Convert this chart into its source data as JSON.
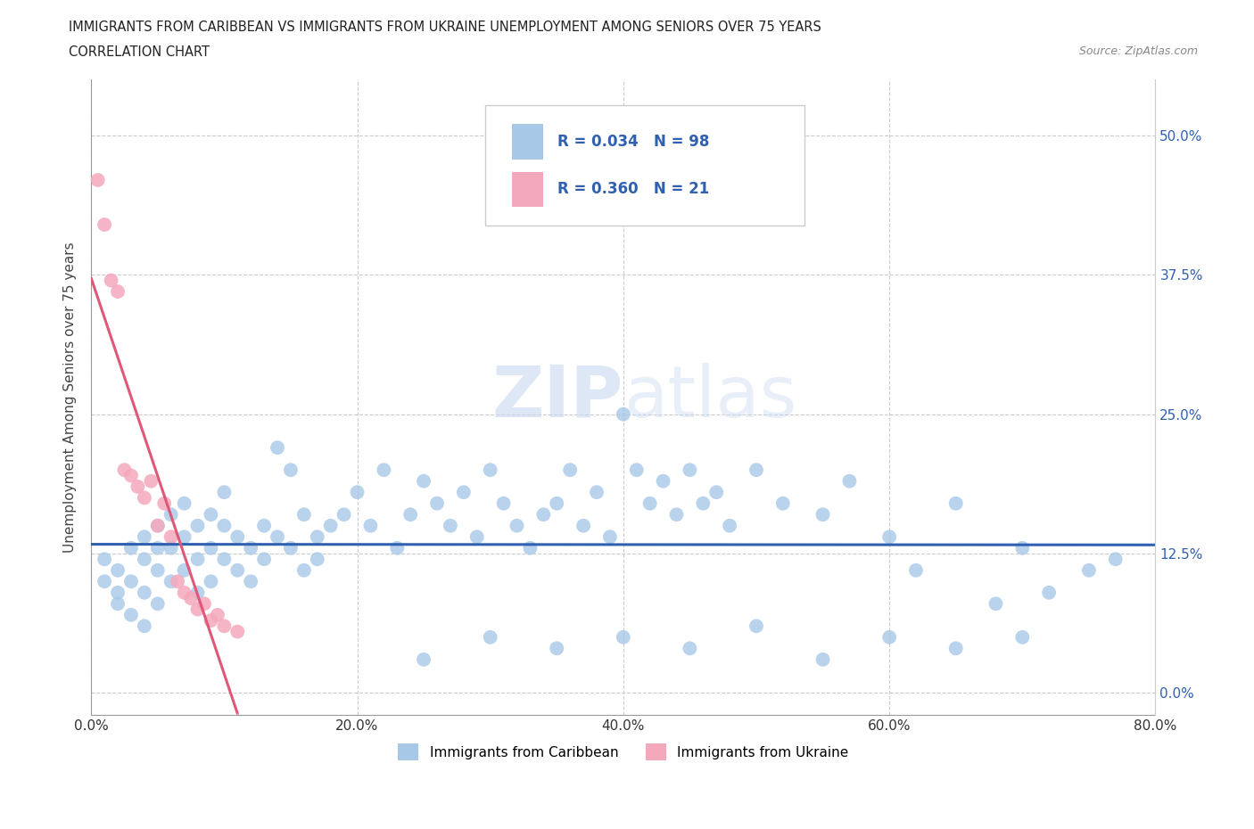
{
  "title_line1": "IMMIGRANTS FROM CARIBBEAN VS IMMIGRANTS FROM UKRAINE UNEMPLOYMENT AMONG SENIORS OVER 75 YEARS",
  "title_line2": "CORRELATION CHART",
  "source_text": "Source: ZipAtlas.com",
  "ylabel": "Unemployment Among Seniors over 75 years",
  "xlim": [
    0.0,
    0.8
  ],
  "ylim": [
    -0.02,
    0.55
  ],
  "xticks": [
    0.0,
    0.2,
    0.4,
    0.6,
    0.8
  ],
  "xticklabels": [
    "0.0%",
    "20.0%",
    "40.0%",
    "60.0%",
    "80.0%"
  ],
  "yticks": [
    0.0,
    0.125,
    0.25,
    0.375,
    0.5
  ],
  "yticklabels_right": [
    "0.0%",
    "12.5%",
    "25.0%",
    "37.5%",
    "50.0%"
  ],
  "grid_color": "#cccccc",
  "background_color": "#ffffff",
  "caribbean_color": "#a8c8e8",
  "ukraine_color": "#f4a8bc",
  "caribbean_line_color": "#3060b0",
  "ukraine_line_color": "#e05878",
  "ukraine_line_dotted_color": "#e8a0b0",
  "R_caribbean": 0.034,
  "N_caribbean": 98,
  "R_ukraine": 0.36,
  "N_ukraine": 21,
  "watermark_zip": "ZIP",
  "watermark_atlas": "atlas",
  "legend_label_caribbean": "Immigrants from Caribbean",
  "legend_label_ukraine": "Immigrants from Ukraine",
  "caribbean_x": [
    0.01,
    0.01,
    0.02,
    0.02,
    0.02,
    0.03,
    0.03,
    0.03,
    0.04,
    0.04,
    0.04,
    0.04,
    0.05,
    0.05,
    0.05,
    0.05,
    0.06,
    0.06,
    0.06,
    0.07,
    0.07,
    0.07,
    0.08,
    0.08,
    0.08,
    0.09,
    0.09,
    0.09,
    0.1,
    0.1,
    0.1,
    0.11,
    0.11,
    0.12,
    0.12,
    0.13,
    0.13,
    0.14,
    0.14,
    0.15,
    0.15,
    0.16,
    0.16,
    0.17,
    0.17,
    0.18,
    0.19,
    0.2,
    0.21,
    0.22,
    0.23,
    0.24,
    0.25,
    0.26,
    0.27,
    0.28,
    0.29,
    0.3,
    0.31,
    0.32,
    0.33,
    0.34,
    0.35,
    0.36,
    0.37,
    0.38,
    0.39,
    0.4,
    0.41,
    0.42,
    0.43,
    0.44,
    0.45,
    0.46,
    0.47,
    0.48,
    0.5,
    0.52,
    0.55,
    0.57,
    0.6,
    0.62,
    0.65,
    0.68,
    0.7,
    0.72,
    0.75,
    0.77,
    0.4,
    0.35,
    0.25,
    0.3,
    0.45,
    0.5,
    0.55,
    0.6,
    0.65,
    0.7
  ],
  "caribbean_y": [
    0.12,
    0.1,
    0.11,
    0.09,
    0.08,
    0.13,
    0.1,
    0.07,
    0.14,
    0.12,
    0.09,
    0.06,
    0.15,
    0.13,
    0.11,
    0.08,
    0.16,
    0.13,
    0.1,
    0.17,
    0.14,
    0.11,
    0.15,
    0.12,
    0.09,
    0.16,
    0.13,
    0.1,
    0.18,
    0.15,
    0.12,
    0.14,
    0.11,
    0.13,
    0.1,
    0.15,
    0.12,
    0.22,
    0.14,
    0.2,
    0.13,
    0.16,
    0.11,
    0.14,
    0.12,
    0.15,
    0.16,
    0.18,
    0.15,
    0.2,
    0.13,
    0.16,
    0.19,
    0.17,
    0.15,
    0.18,
    0.14,
    0.2,
    0.17,
    0.15,
    0.13,
    0.16,
    0.17,
    0.2,
    0.15,
    0.18,
    0.14,
    0.25,
    0.2,
    0.17,
    0.19,
    0.16,
    0.2,
    0.17,
    0.18,
    0.15,
    0.2,
    0.17,
    0.16,
    0.19,
    0.14,
    0.11,
    0.17,
    0.08,
    0.13,
    0.09,
    0.11,
    0.12,
    0.05,
    0.04,
    0.03,
    0.05,
    0.04,
    0.06,
    0.03,
    0.05,
    0.04,
    0.05
  ],
  "ukraine_x": [
    0.005,
    0.01,
    0.015,
    0.02,
    0.025,
    0.03,
    0.035,
    0.04,
    0.045,
    0.05,
    0.055,
    0.06,
    0.065,
    0.07,
    0.075,
    0.08,
    0.085,
    0.09,
    0.095,
    0.1,
    0.11
  ],
  "ukraine_y": [
    0.46,
    0.42,
    0.37,
    0.36,
    0.2,
    0.195,
    0.185,
    0.175,
    0.19,
    0.15,
    0.17,
    0.14,
    0.1,
    0.09,
    0.085,
    0.075,
    0.08,
    0.065,
    0.07,
    0.06,
    0.055
  ]
}
